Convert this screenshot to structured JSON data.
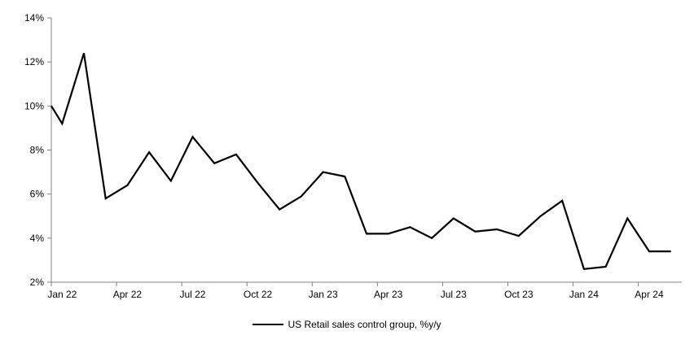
{
  "chart_data": {
    "type": "line",
    "title": "",
    "xlabel": "",
    "ylabel": "",
    "background": "#ffffff",
    "axis_color": "#808080",
    "text_color": "#000000",
    "grid": false,
    "ylim": [
      2,
      14
    ],
    "y_tick_step": 2,
    "y_ticks": [
      "2%",
      "4%",
      "6%",
      "8%",
      "10%",
      "12%",
      "14%"
    ],
    "x_tick_labels": [
      "Jan 22",
      "Apr 22",
      "Jul 22",
      "Oct 22",
      "Jan 23",
      "Apr 23",
      "Jul 23",
      "Oct 23",
      "Jan 24",
      "Apr 24"
    ],
    "x_tick_every": 3,
    "lead_in_at_left_axis": 10.0,
    "legend": {
      "label": "US Retail sales control group, %y/y",
      "position": "bottom-center",
      "swatch": "black-line"
    },
    "series": [
      {
        "name": "US Retail sales control group, %y/y",
        "color": "#000000",
        "x": [
          "Jan 22",
          "Feb 22",
          "Mar 22",
          "Apr 22",
          "May 22",
          "Jun 22",
          "Jul 22",
          "Aug 22",
          "Sep 22",
          "Oct 22",
          "Nov 22",
          "Dec 22",
          "Jan 23",
          "Feb 23",
          "Mar 23",
          "Apr 23",
          "May 23",
          "Jun 23",
          "Jul 23",
          "Aug 23",
          "Sep 23",
          "Oct 23",
          "Nov 23",
          "Dec 23",
          "Jan 24",
          "Feb 24",
          "Mar 24",
          "Apr 24",
          "May 24"
        ],
        "values": [
          9.2,
          12.4,
          5.8,
          6.4,
          7.9,
          6.6,
          8.6,
          7.4,
          7.8,
          6.5,
          5.3,
          5.9,
          7.0,
          6.8,
          4.2,
          4.2,
          4.5,
          4.0,
          4.9,
          4.3,
          4.4,
          4.1,
          5.0,
          5.7,
          2.6,
          2.7,
          4.9,
          3.4,
          3.4
        ]
      }
    ]
  }
}
